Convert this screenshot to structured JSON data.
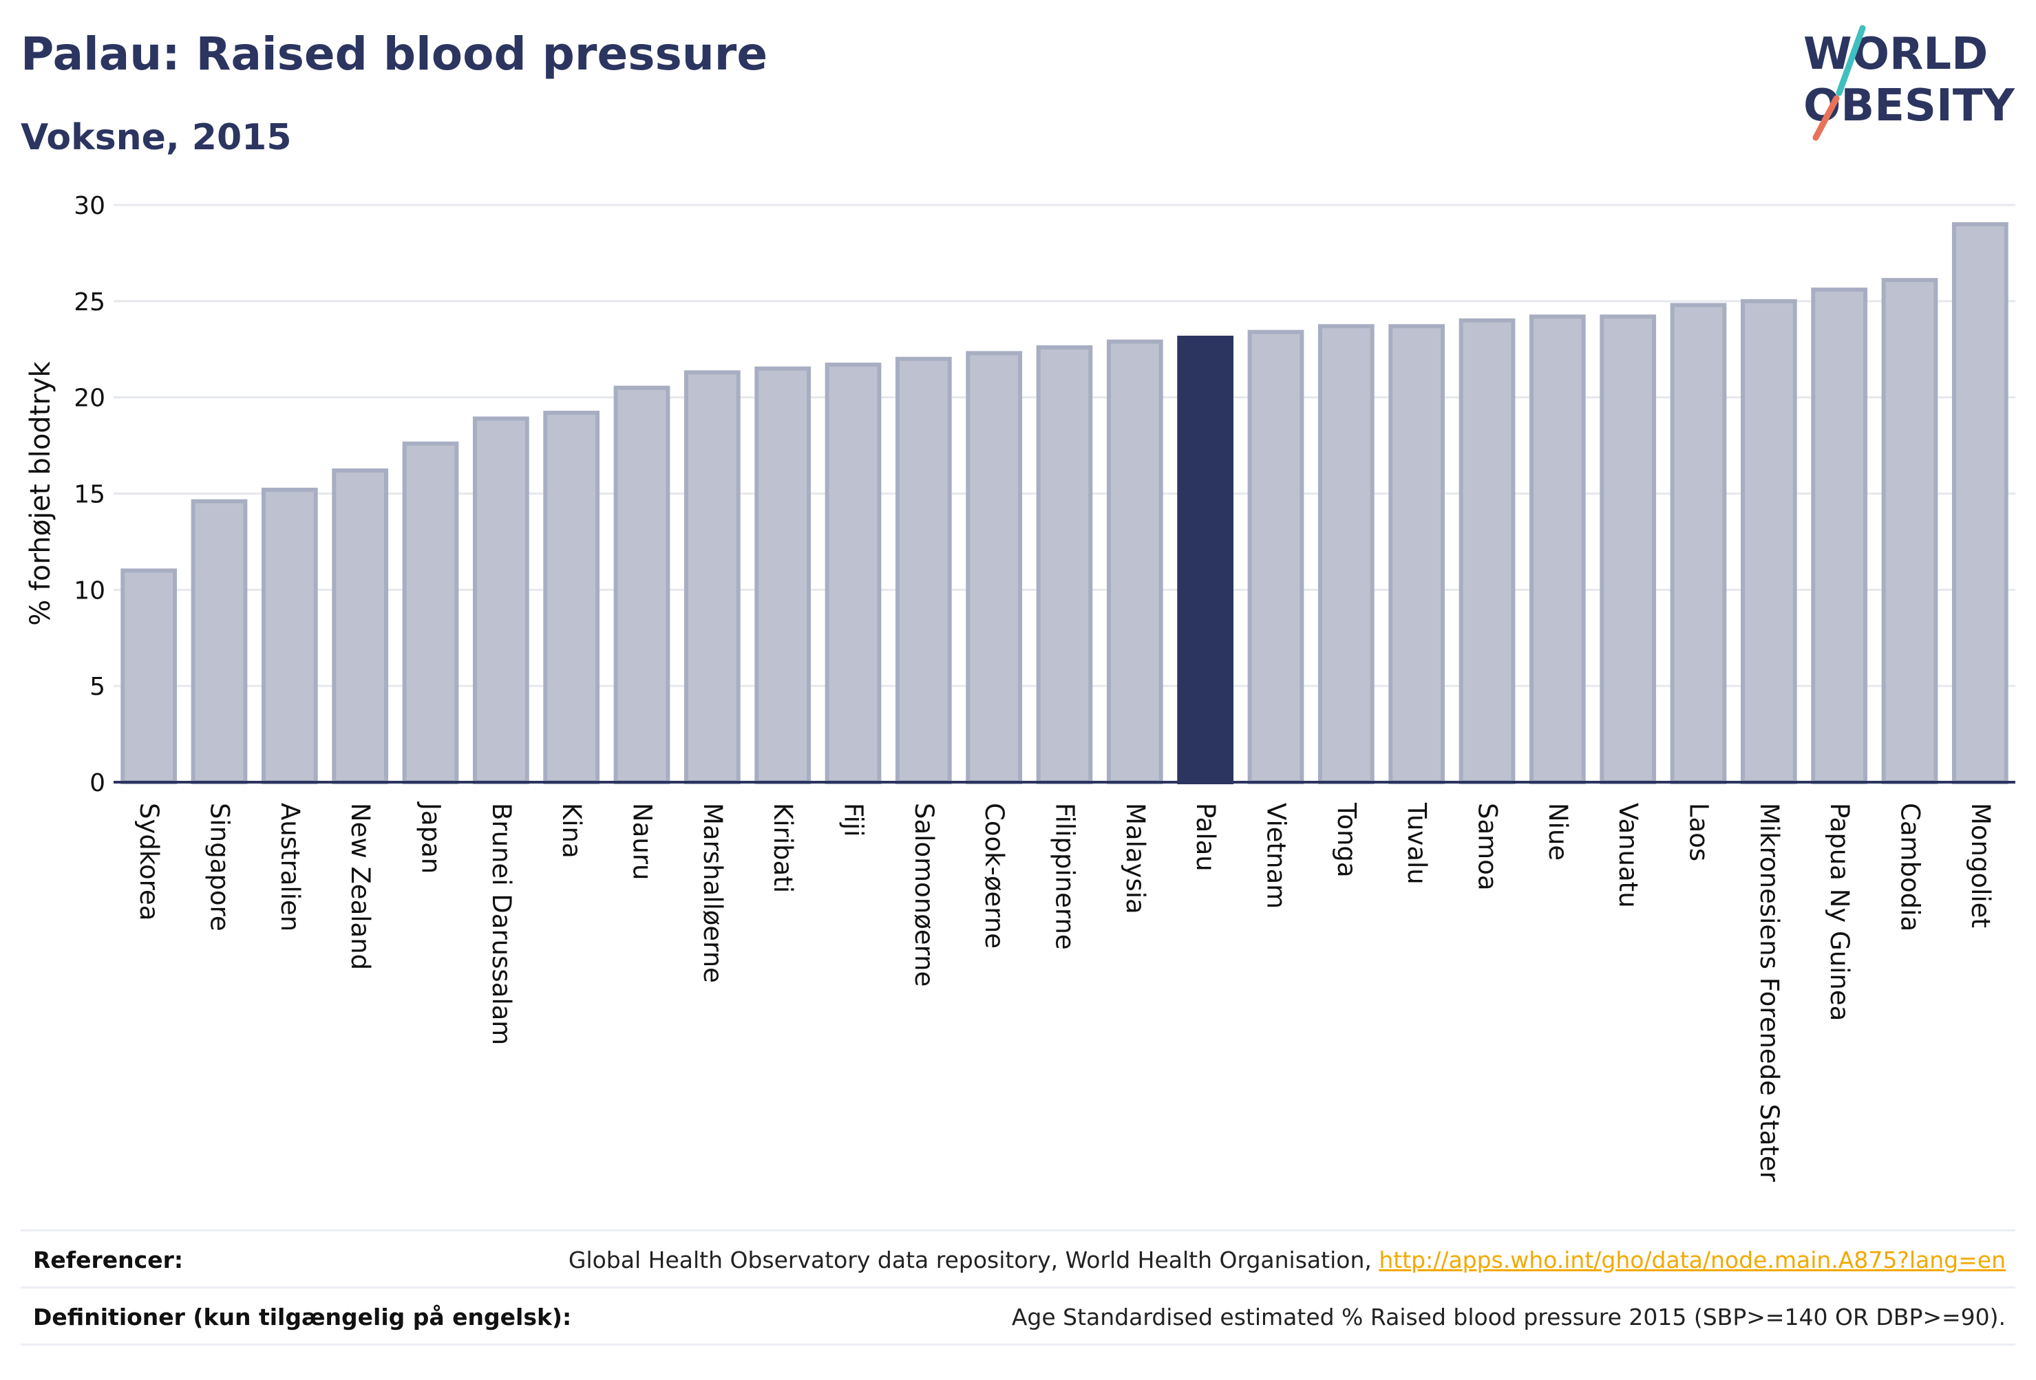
{
  "title": "Palau: Raised blood pressure",
  "subtitle": "Voksne, 2015",
  "logo": {
    "line1": "WORLD",
    "line2": "OBESITY"
  },
  "chart_data": {
    "type": "bar",
    "ylabel": "% forhøjet blodtryk",
    "xlabel": "",
    "ylim": [
      0,
      30
    ],
    "yticks": [
      0,
      5,
      10,
      15,
      20,
      25,
      30
    ],
    "grid": true,
    "highlight": "Palau",
    "categories": [
      "Sydkorea",
      "Singapore",
      "Australien",
      "New Zealand",
      "Japan",
      "Brunei Darussalam",
      "Kina",
      "Nauru",
      "Marshalløerne",
      "Kiribati",
      "Fiji",
      "Salomonøerne",
      "Cook-øerne",
      "Filippinerne",
      "Malaysia",
      "Palau",
      "Vietnam",
      "Tonga",
      "Tuvalu",
      "Samoa",
      "Niue",
      "Vanuatu",
      "Laos",
      "Mikronesiens Forenede Stater",
      "Papua Ny Guinea",
      "Cambodia",
      "Mongoliet"
    ],
    "values": [
      11.0,
      14.6,
      15.2,
      16.2,
      17.6,
      18.9,
      19.2,
      20.5,
      21.3,
      21.5,
      21.7,
      22.0,
      22.3,
      22.6,
      22.9,
      23.1,
      23.4,
      23.7,
      23.7,
      24.0,
      24.2,
      24.2,
      24.8,
      25.0,
      25.6,
      26.1,
      29.0
    ],
    "colors": {
      "bar": "#bec2d0",
      "bar_edge": "#a8aec2",
      "highlight": "#2b3560",
      "grid": "#e6e8ee",
      "axis": "#2b3560"
    }
  },
  "footer": {
    "references_label": "Referencer:",
    "references_text": "Global Health Observatory data repository, World Health Organisation, ",
    "references_link": "http://apps.who.int/gho/data/node.main.A875?lang=en",
    "definitions_label": "Definitioner (kun tilgængelig på engelsk):",
    "definitions_text": "Age Standardised estimated % Raised blood pressure 2015 (SBP>=140 OR DBP>=90)."
  }
}
